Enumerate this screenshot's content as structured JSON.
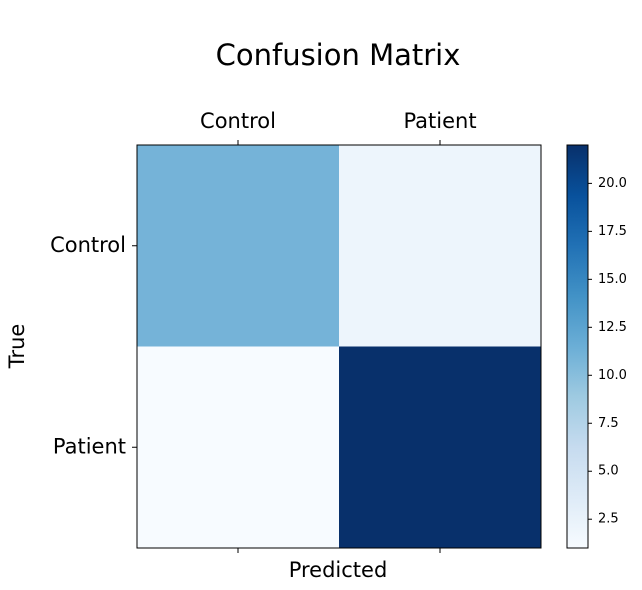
{
  "chart_data": {
    "type": "heatmap",
    "title": "Confusion Matrix",
    "x_label": "Predicted",
    "y_label": "True",
    "x_categories": [
      "Control",
      "Patient"
    ],
    "y_categories": [
      "Control",
      "Patient"
    ],
    "z": [
      [
        11,
        2
      ],
      [
        1,
        22
      ]
    ],
    "colormap": "Blues",
    "zlim": [
      1,
      22
    ],
    "zticks": [
      2.5,
      {
        "value": 5,
        "label": "5.0"
      },
      7.5,
      {
        "value": 10,
        "label": "10.0"
      },
      12.5,
      {
        "value": 15,
        "label": "15.0"
      },
      17.5,
      {
        "value": 20,
        "label": "20.0"
      }
    ]
  }
}
